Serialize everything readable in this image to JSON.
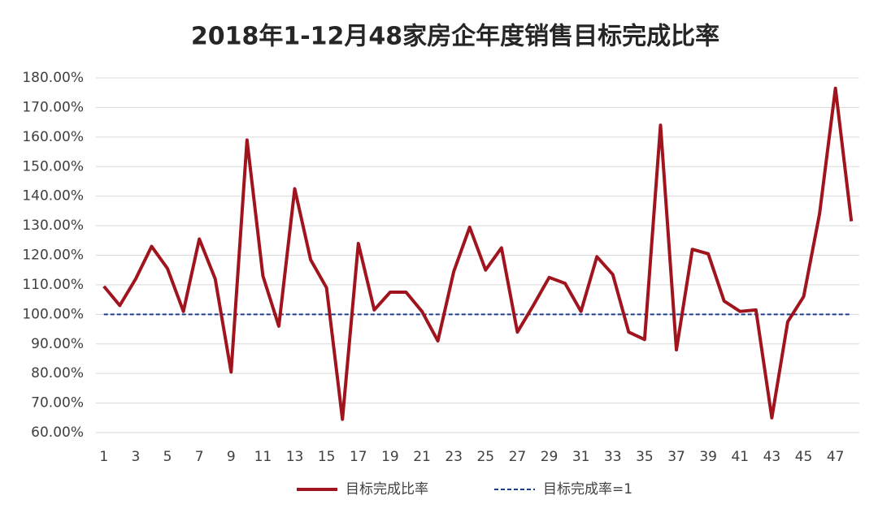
{
  "chart_data": {
    "type": "line",
    "title": "2018年1-12月48家房企年度销售目标完成比率",
    "x": [
      1,
      2,
      3,
      4,
      5,
      6,
      7,
      8,
      9,
      10,
      11,
      12,
      13,
      14,
      15,
      16,
      17,
      18,
      19,
      20,
      21,
      22,
      23,
      24,
      25,
      26,
      27,
      28,
      29,
      30,
      31,
      32,
      33,
      34,
      35,
      36,
      37,
      38,
      39,
      40,
      41,
      42,
      43,
      44,
      45,
      46,
      47,
      48
    ],
    "xlim": [
      0.5,
      48.5
    ],
    "xticks": [
      1,
      3,
      5,
      7,
      9,
      11,
      13,
      15,
      17,
      19,
      21,
      23,
      25,
      27,
      29,
      31,
      33,
      35,
      37,
      39,
      41,
      43,
      45,
      47
    ],
    "ylim": [
      60,
      180
    ],
    "yticks": [
      {
        "value": 60,
        "label": "60.00%"
      },
      {
        "value": 70,
        "label": "70.00%"
      },
      {
        "value": 80,
        "label": "80.00%"
      },
      {
        "value": 90,
        "label": "90.00%"
      },
      {
        "value": 100,
        "label": "100.00%"
      },
      {
        "value": 110,
        "label": "110.00%"
      },
      {
        "value": 120,
        "label": "120.00%"
      },
      {
        "value": 130,
        "label": "130.00%"
      },
      {
        "value": 140,
        "label": "140.00%"
      },
      {
        "value": 150,
        "label": "150.00%"
      },
      {
        "value": 160,
        "label": "160.00%"
      },
      {
        "value": 170,
        "label": "170.00%"
      },
      {
        "value": 180,
        "label": "180.00%"
      }
    ],
    "grid": true,
    "legend": "bottom",
    "series": [
      {
        "name": "目标完成比率",
        "color": "#a0141e",
        "line_style": "solid",
        "values": [
          109.5,
          103,
          112,
          123,
          115.5,
          101,
          125.5,
          112,
          80.5,
          159,
          113,
          96,
          142.5,
          118.5,
          109,
          64.5,
          124,
          101.5,
          107.5,
          107.5,
          101,
          91,
          114.5,
          129.5,
          115,
          122.5,
          94,
          103,
          112.5,
          110.5,
          101,
          119.5,
          113.5,
          94,
          91.5,
          164,
          88,
          122,
          120.5,
          104.5,
          101,
          101.5,
          65,
          97.5,
          106,
          134,
          176.5,
          131.5
        ]
      },
      {
        "name": "目标完成率=1",
        "color": "#1f3c88",
        "line_style": "dashed",
        "values": [
          100,
          100,
          100,
          100,
          100,
          100,
          100,
          100,
          100,
          100,
          100,
          100,
          100,
          100,
          100,
          100,
          100,
          100,
          100,
          100,
          100,
          100,
          100,
          100,
          100,
          100,
          100,
          100,
          100,
          100,
          100,
          100,
          100,
          100,
          100,
          100,
          100,
          100,
          100,
          100,
          100,
          100,
          100,
          100,
          100,
          100,
          100,
          100
        ]
      }
    ]
  }
}
